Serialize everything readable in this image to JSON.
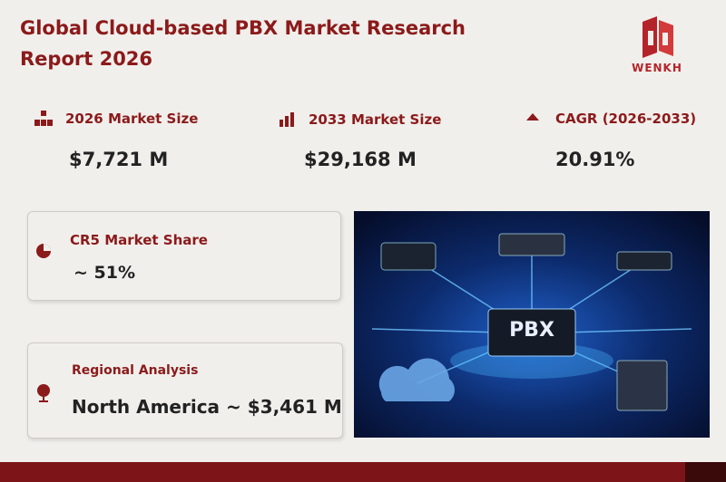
{
  "header": {
    "title": "Global Cloud-based PBX Market Research Report 2026",
    "logo": "WENKH"
  },
  "stats": [
    {
      "label": "2026 Market Size",
      "value": "$7,721 M"
    },
    {
      "label": "2033 Market Size",
      "value": "$29,168 M"
    },
    {
      "label": "CAGR (2026-2033)",
      "value": "20.91%"
    }
  ],
  "cards": [
    {
      "label": "CR5 Market Share",
      "value": "~ 51%"
    },
    {
      "label": "Regional Analysis",
      "value": "North America ~ $3,461 M"
    }
  ],
  "image": {
    "label": "PBX"
  }
}
